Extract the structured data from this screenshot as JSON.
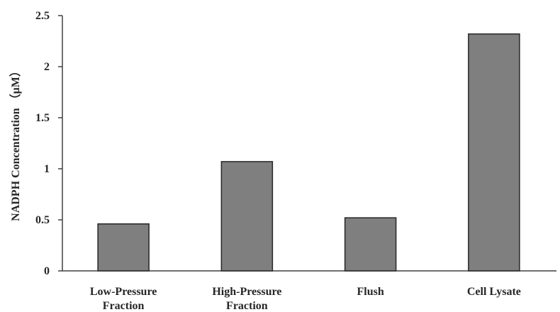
{
  "chart_data": {
    "type": "bar",
    "title": "",
    "xlabel": "",
    "ylabel": "NADPH Concentration （μM）",
    "ylim": [
      0,
      2.5
    ],
    "yticks": [
      "0",
      "0.5",
      "1",
      "1.5",
      "2",
      "2.5"
    ],
    "ytick_values": [
      0,
      0.5,
      1,
      1.5,
      2,
      2.5
    ],
    "categories": [
      [
        "Low-Pressure",
        "Fraction"
      ],
      [
        "High-Pressure",
        "Fraction"
      ],
      [
        "Flush"
      ],
      [
        "Cell Lysate"
      ]
    ],
    "values": [
      0.46,
      1.07,
      0.52,
      2.32
    ],
    "grid": false,
    "legend": "none",
    "bar_color": "#7f7f7f",
    "bar_edge_color": "#262626",
    "axis_color": "#404040"
  }
}
